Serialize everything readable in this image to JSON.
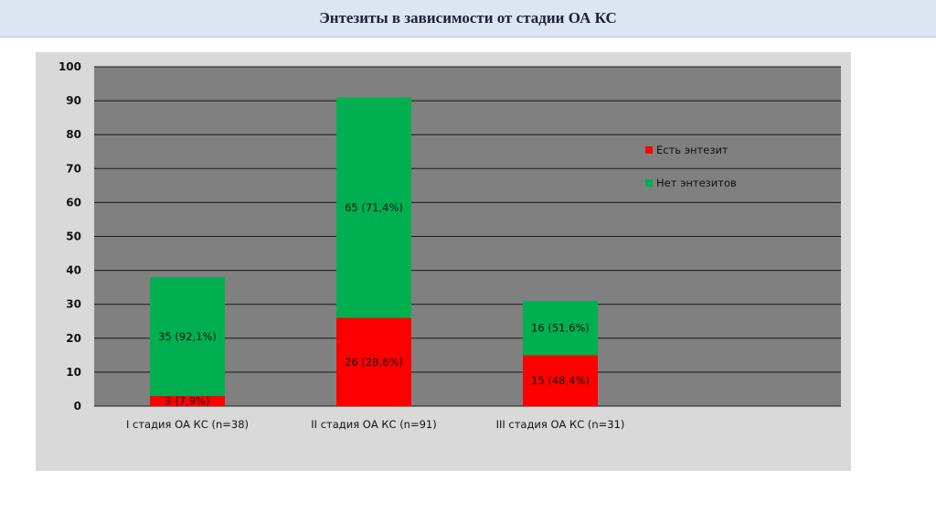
{
  "slide": {
    "title": "Энтезиты в зависимости от стадии ОА КС"
  },
  "colors": {
    "plot_bg": "#808080",
    "frame_bg": "#d9d9d9",
    "series_yes": "#ff0000",
    "series_no": "#00b050"
  },
  "chart_data": {
    "type": "bar",
    "stacked": true,
    "title": "",
    "xlabel": "",
    "ylabel": "",
    "ylim": [
      0,
      100
    ],
    "yticks": [
      "0",
      "10",
      "20",
      "30",
      "40",
      "50",
      "60",
      "70",
      "80",
      "90",
      "100"
    ],
    "grid": true,
    "legend_position": "right",
    "categories": [
      "I  стадия ОА КС (n=38)",
      "II стадия ОА КС (n=91)",
      "III стадия ОА КС (n=31)"
    ],
    "series": [
      {
        "name": "Есть энтезит",
        "color": "#ff0000",
        "values": [
          3,
          26,
          15
        ],
        "labels": [
          "3 (7,9%)",
          "26 (28,6%)",
          "15 (48,4%)"
        ]
      },
      {
        "name": "Нет энтезитов",
        "color": "#00b050",
        "values": [
          35,
          65,
          16
        ],
        "labels": [
          "35 (92,1%)",
          "65 (71,4%)",
          "16 (51,6%)"
        ]
      }
    ]
  }
}
